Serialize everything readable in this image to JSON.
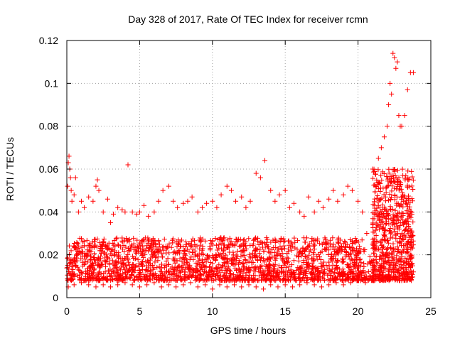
{
  "chart_data": {
    "type": "scatter",
    "title": "Day 328 of 2017, Rate Of TEC Index for receiver rcmn",
    "xlabel": "GPS time / hours",
    "ylabel": "ROTI / TECUs",
    "xlim": [
      0,
      25
    ],
    "ylim": [
      0,
      0.12
    ],
    "x_ticks": [
      "0",
      "5",
      "10",
      "15",
      "20",
      "25"
    ],
    "y_ticks": [
      "0",
      "0.02",
      "0.04",
      "0.06",
      "0.08",
      "0.1",
      "0.12"
    ],
    "grid": true,
    "marker": "plus",
    "colors": {
      "series": "#ff0000",
      "grid": "#a0a0a0",
      "axis": "#000000"
    },
    "series": [
      {
        "x": [
          0.05,
          0.1,
          0.15,
          0.2,
          0.25,
          0.3,
          0.35,
          0.5,
          0.6,
          0.8,
          1.0,
          1.2,
          1.5,
          1.8,
          2.0,
          2.1,
          2.2,
          2.5,
          2.8,
          3.0,
          3.2,
          3.5,
          3.8,
          4.0,
          4.2,
          4.5,
          4.8,
          5.0,
          5.3,
          5.6,
          6.0,
          6.3,
          6.6,
          7.0,
          7.3,
          7.6,
          8.0,
          8.3,
          8.6,
          9.0,
          9.3,
          9.6,
          10.0,
          10.3,
          10.6,
          11.0,
          11.3,
          11.6,
          12.0,
          12.3,
          12.6,
          13.0,
          13.3,
          13.6,
          14.0,
          14.3,
          14.6,
          15.0,
          15.3,
          15.6,
          16.0,
          16.3,
          16.6,
          17.0,
          17.3,
          17.6,
          18.0,
          18.3,
          18.6,
          19.0,
          19.3,
          19.6,
          20.0,
          20.3,
          20.6,
          21.0,
          21.2,
          21.4,
          21.6,
          21.8,
          22.0,
          22.1,
          22.2,
          22.3,
          22.4,
          22.5,
          22.6,
          22.7,
          22.8,
          22.9,
          23.0,
          23.2,
          23.4,
          23.6,
          23.8
        ],
        "y": [
          0.052,
          0.063,
          0.066,
          0.06,
          0.056,
          0.05,
          0.045,
          0.048,
          0.056,
          0.04,
          0.045,
          0.042,
          0.047,
          0.045,
          0.052,
          0.055,
          0.05,
          0.04,
          0.046,
          0.035,
          0.039,
          0.042,
          0.041,
          0.04,
          0.062,
          0.04,
          0.039,
          0.04,
          0.043,
          0.038,
          0.04,
          0.045,
          0.05,
          0.052,
          0.045,
          0.042,
          0.044,
          0.045,
          0.047,
          0.04,
          0.042,
          0.044,
          0.045,
          0.042,
          0.048,
          0.052,
          0.05,
          0.045,
          0.047,
          0.042,
          0.045,
          0.058,
          0.056,
          0.064,
          0.05,
          0.045,
          0.048,
          0.05,
          0.042,
          0.044,
          0.04,
          0.038,
          0.047,
          0.04,
          0.045,
          0.042,
          0.046,
          0.05,
          0.045,
          0.048,
          0.052,
          0.05,
          0.045,
          0.04,
          0.03,
          0.06,
          0.052,
          0.065,
          0.07,
          0.075,
          0.08,
          0.09,
          0.1,
          0.095,
          0.114,
          0.112,
          0.107,
          0.11,
          0.085,
          0.08,
          0.08,
          0.085,
          0.097,
          0.105,
          0.105
        ]
      },
      {
        "x": [
          0.1,
          0.5,
          1.0,
          1.5,
          2.0,
          2.5,
          3.0,
          3.5,
          4.0,
          4.5,
          5.0,
          5.5,
          6.0,
          6.5,
          7.0,
          7.5,
          8.0,
          8.5,
          9.0,
          9.5,
          10.0,
          10.5,
          11.0,
          11.5,
          12.0,
          12.5,
          13.0,
          13.5,
          14.0,
          14.5,
          15.0,
          15.5,
          16.0,
          16.5,
          17.0,
          17.5,
          18.0,
          18.5,
          19.0,
          19.5,
          20.0,
          20.5,
          21.0,
          21.5,
          22.0,
          22.5,
          23.0,
          23.5,
          23.8
        ],
        "y": [
          0.005,
          0.006,
          0.007,
          0.006,
          0.005,
          0.006,
          0.005,
          0.006,
          0.007,
          0.006,
          0.005,
          0.006,
          0.007,
          0.005,
          0.006,
          0.005,
          0.006,
          0.007,
          0.005,
          0.006,
          0.004,
          0.006,
          0.005,
          0.006,
          0.005,
          0.006,
          0.005,
          0.004,
          0.006,
          0.005,
          0.006,
          0.005,
          0.006,
          0.007,
          0.006,
          0.005,
          0.006,
          0.007,
          0.006,
          0.007,
          0.008,
          0.007,
          0.008,
          0.009,
          0.01,
          0.009,
          0.008,
          0.01,
          0.012
        ]
      }
    ],
    "bands": [
      {
        "x_from": 0,
        "x_to": 20.5,
        "y_low": 0.008,
        "y_high": 0.028
      },
      {
        "x_from": 20.5,
        "x_to": 21.0,
        "y_low": 0.008,
        "y_high": 0.02
      },
      {
        "x_from": 21.0,
        "x_to": 23.8,
        "y_low": 0.008,
        "y_high": 0.06
      }
    ]
  }
}
